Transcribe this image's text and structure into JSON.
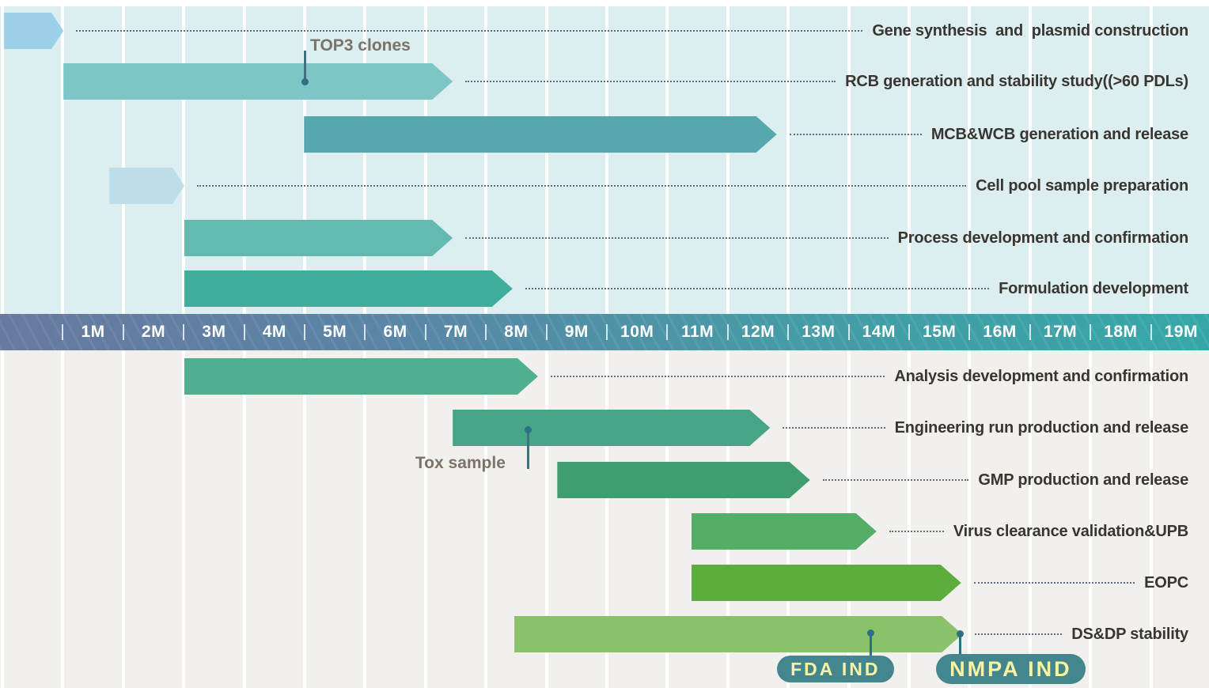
{
  "chart_data": {
    "type": "gantt",
    "title": "",
    "axis": {
      "unit": "months",
      "tick_labels": [
        "1M",
        "2M",
        "3M",
        "4M",
        "5M",
        "6M",
        "7M",
        "8M",
        "9M",
        "10M",
        "11M",
        "12M",
        "13M",
        "14M",
        "15M",
        "16M",
        "17M",
        "18M",
        "19M"
      ],
      "range": [
        0,
        20
      ],
      "band_color_left": "#68799f",
      "band_color_right": "#36a7a8",
      "grid": "on"
    },
    "tasks": [
      {
        "label": "Gene synthesis  and  plasmid construction",
        "start": 0.03,
        "end": 1.01,
        "color": "#9dd1e9",
        "section": "top"
      },
      {
        "label": "RCB generation and stability study((>60 PDLs)",
        "start": 1.01,
        "end": 7.45,
        "color": "#7ec5c7",
        "section": "top"
      },
      {
        "label": "MCB&WCB generation and release",
        "start": 4.99,
        "end": 12.81,
        "color": "#57a8ae",
        "section": "top"
      },
      {
        "label": "Cell pool sample preparation",
        "start": 1.77,
        "end": 3.01,
        "color": "#bddde8",
        "section": "top"
      },
      {
        "label": "Process development and confirmation",
        "start": 3.01,
        "end": 7.45,
        "color": "#64b9b1",
        "section": "top"
      },
      {
        "label": "Formulation development",
        "start": 3.01,
        "end": 8.44,
        "color": "#3fae9c",
        "section": "top"
      },
      {
        "label": "Analysis development and confirmation",
        "start": 3.01,
        "end": 8.86,
        "color": "#4fb091",
        "section": "bottom"
      },
      {
        "label": "Engineering run production and release",
        "start": 7.45,
        "end": 12.7,
        "color": "#45a586",
        "section": "bottom"
      },
      {
        "label": "GMP production and release",
        "start": 9.18,
        "end": 13.36,
        "color": "#3f9d6f",
        "section": "bottom"
      },
      {
        "label": "Virus clearance validation&UPB",
        "start": 11.4,
        "end": 14.46,
        "color": "#54ae68",
        "section": "bottom"
      },
      {
        "label": "EOPC",
        "start": 11.4,
        "end": 15.86,
        "color": "#5cad3e",
        "section": "bottom"
      },
      {
        "label": "DS&DP stability",
        "start": 8.47,
        "end": 15.88,
        "color": "#8bc169",
        "section": "bottom"
      }
    ],
    "callouts": [
      {
        "label": "TOP3 clones",
        "month": 5.0,
        "attached_task": "RCB generation and stability study((>60 PDLs)",
        "position": "above"
      },
      {
        "label": "Tox sample",
        "month": 8.69,
        "attached_task": "Engineering run production and release",
        "position": "below"
      }
    ],
    "milestones": [
      {
        "label": "FDA IND",
        "month": 14.36,
        "attached_task": "DS&DP stability"
      },
      {
        "label": "NMPA IND",
        "month": 15.84,
        "attached_task": "DS&DP stability"
      }
    ]
  },
  "colors": {
    "top_background": "#dceef0",
    "bottom_background": "#f2f0ed",
    "leader_line": "#47566c",
    "label_text": "#393530",
    "callout_text": "#7b7268",
    "marker": "#2e6f81",
    "badge_background": "#44868e",
    "badge_text": "#f9f3a2"
  }
}
